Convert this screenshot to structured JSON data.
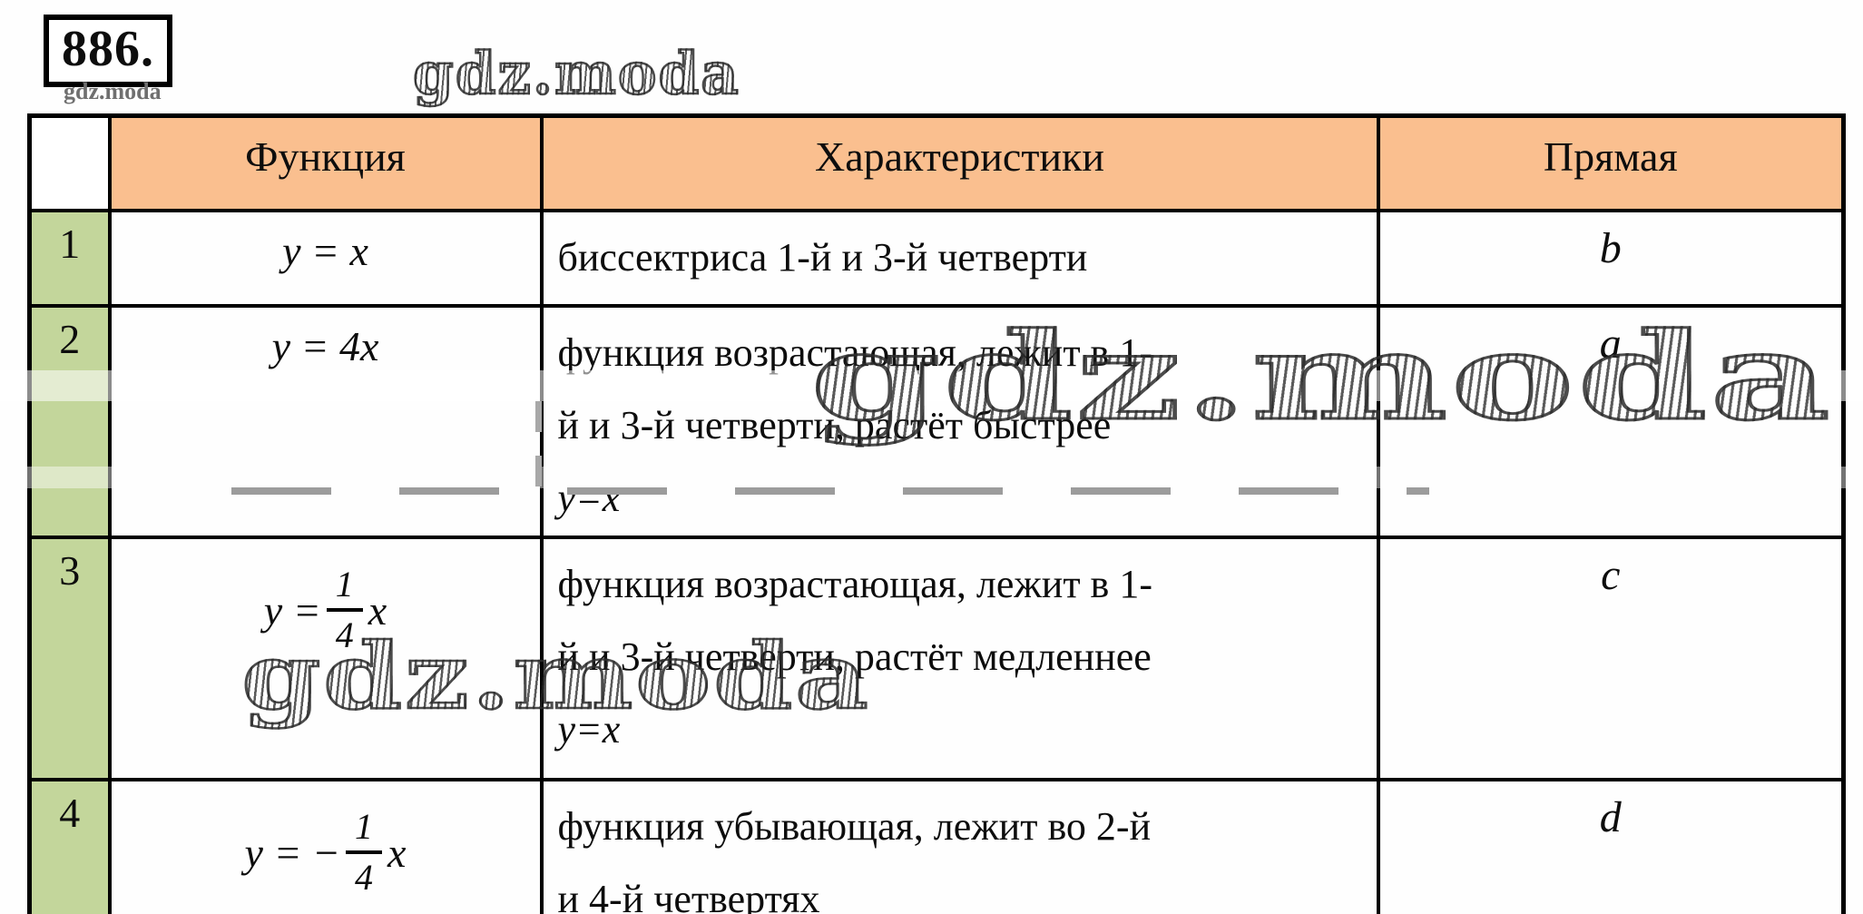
{
  "problem": {
    "number": "886.",
    "watermark_caption": "gdz.moda"
  },
  "watermarks": {
    "top": "gdz.moda",
    "middle": "gdz.moda",
    "row3": "gdz.moda"
  },
  "colors": {
    "header_bg": "#FABF8F",
    "row_number_bg": "#C3D69B",
    "border": "#000000"
  },
  "table": {
    "col_headers": {
      "function": "Функция",
      "characteristics": "Характеристики",
      "line": "Прямая"
    },
    "rows": [
      {
        "num": "1",
        "function": {
          "text": "y = x"
        },
        "characteristics": [
          "биссектриса 1-й и 3-й четверти"
        ],
        "line": "b"
      },
      {
        "num": "2",
        "function": {
          "text": "y = 4x"
        },
        "characteristics": [
          "функция возрастающая, лежит в 1-",
          "й и 3-й четверти, растёт быстрее",
          "y=x"
        ],
        "line": "a"
      },
      {
        "num": "3",
        "function": {
          "prefix": "y = ",
          "numerator": "1",
          "denominator": "4",
          "suffix": "x"
        },
        "characteristics": [
          "функция возрастающая, лежит в 1-",
          "й и 3-й четверти, растёт медленнее",
          "y=x"
        ],
        "line": "c"
      },
      {
        "num": "4",
        "function": {
          "prefix": "y = −",
          "numerator": "1",
          "denominator": "4",
          "suffix": "x"
        },
        "characteristics": [
          "функция убывающая, лежит во 2-й",
          "и 4-й четвертях"
        ],
        "line": "d"
      }
    ]
  }
}
